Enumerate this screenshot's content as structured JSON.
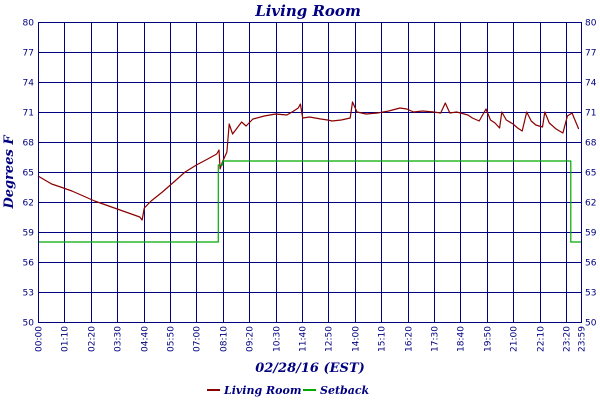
{
  "chart_data": {
    "type": "line",
    "title": "Living Room",
    "xlabel": "02/28/16 (EST)",
    "ylabel": "Degrees F",
    "ylim": [
      50,
      80
    ],
    "yticks": [
      50,
      53,
      56,
      59,
      62,
      65,
      68,
      71,
      74,
      77,
      80
    ],
    "xlim_hours": [
      0,
      24
    ],
    "xtick_labels": [
      "00:00",
      "01:10",
      "02:20",
      "03:30",
      "04:40",
      "05:50",
      "07:00",
      "08:10",
      "09:20",
      "10:30",
      "11:40",
      "12:50",
      "14:00",
      "15:10",
      "16:20",
      "17:30",
      "18:40",
      "19:50",
      "21:00",
      "22:10",
      "23:20",
      "23:59"
    ],
    "colors": {
      "axis": "#000080",
      "living_room": "#8b0000",
      "setback": "#00aa00"
    },
    "series": [
      {
        "name": "Living Room",
        "color": "#8b0000",
        "points": [
          [
            0.0,
            64.6
          ],
          [
            0.3,
            64.2
          ],
          [
            0.6,
            63.8
          ],
          [
            1.0,
            63.5
          ],
          [
            1.5,
            63.1
          ],
          [
            2.0,
            62.6
          ],
          [
            2.5,
            62.1
          ],
          [
            3.0,
            61.7
          ],
          [
            3.5,
            61.3
          ],
          [
            4.0,
            60.9
          ],
          [
            4.5,
            60.5
          ],
          [
            4.6,
            60.2
          ],
          [
            4.7,
            61.4
          ],
          [
            5.0,
            62.1
          ],
          [
            5.5,
            63.0
          ],
          [
            6.0,
            64.0
          ],
          [
            6.5,
            65.0
          ],
          [
            7.0,
            65.7
          ],
          [
            7.5,
            66.3
          ],
          [
            7.9,
            66.8
          ],
          [
            8.0,
            67.2
          ],
          [
            8.05,
            65.3
          ],
          [
            8.15,
            66.0
          ],
          [
            8.35,
            67.0
          ],
          [
            8.45,
            69.8
          ],
          [
            8.6,
            68.8
          ],
          [
            8.8,
            69.4
          ],
          [
            9.0,
            70.0
          ],
          [
            9.2,
            69.6
          ],
          [
            9.5,
            70.3
          ],
          [
            10.0,
            70.6
          ],
          [
            10.5,
            70.8
          ],
          [
            11.0,
            70.7
          ],
          [
            11.3,
            71.1
          ],
          [
            11.5,
            71.4
          ],
          [
            11.6,
            71.8
          ],
          [
            11.7,
            70.4
          ],
          [
            12.0,
            70.5
          ],
          [
            12.5,
            70.3
          ],
          [
            12.8,
            70.2
          ],
          [
            13.0,
            70.1
          ],
          [
            13.4,
            70.2
          ],
          [
            13.6,
            70.3
          ],
          [
            13.8,
            70.4
          ],
          [
            13.9,
            72.0
          ],
          [
            14.1,
            71.0
          ],
          [
            14.5,
            70.8
          ],
          [
            15.0,
            70.9
          ],
          [
            15.5,
            71.1
          ],
          [
            16.0,
            71.4
          ],
          [
            16.3,
            71.3
          ],
          [
            16.6,
            71.0
          ],
          [
            17.0,
            71.1
          ],
          [
            17.5,
            71.0
          ],
          [
            17.8,
            70.9
          ],
          [
            18.0,
            71.9
          ],
          [
            18.2,
            70.9
          ],
          [
            18.5,
            71.0
          ],
          [
            19.0,
            70.7
          ],
          [
            19.2,
            70.4
          ],
          [
            19.5,
            70.1
          ],
          [
            19.8,
            71.3
          ],
          [
            20.0,
            70.2
          ],
          [
            20.2,
            69.9
          ],
          [
            20.4,
            69.4
          ],
          [
            20.5,
            71.0
          ],
          [
            20.7,
            70.2
          ],
          [
            21.0,
            69.8
          ],
          [
            21.2,
            69.4
          ],
          [
            21.4,
            69.1
          ],
          [
            21.6,
            71.0
          ],
          [
            21.8,
            70.1
          ],
          [
            22.0,
            69.7
          ],
          [
            22.3,
            69.5
          ],
          [
            22.4,
            71.0
          ],
          [
            22.6,
            69.9
          ],
          [
            22.9,
            69.3
          ],
          [
            23.2,
            68.9
          ],
          [
            23.4,
            70.6
          ],
          [
            23.6,
            70.9
          ],
          [
            23.9,
            69.3
          ]
        ]
      },
      {
        "name": "Setback",
        "color": "#00aa00",
        "points": [
          [
            0.0,
            58.0
          ],
          [
            7.97,
            58.0
          ],
          [
            7.97,
            65.7
          ],
          [
            8.17,
            65.7
          ],
          [
            8.17,
            66.1
          ],
          [
            23.55,
            66.1
          ],
          [
            23.55,
            58.0
          ],
          [
            24.0,
            58.0
          ]
        ]
      }
    ],
    "legend": "bottom-center"
  }
}
